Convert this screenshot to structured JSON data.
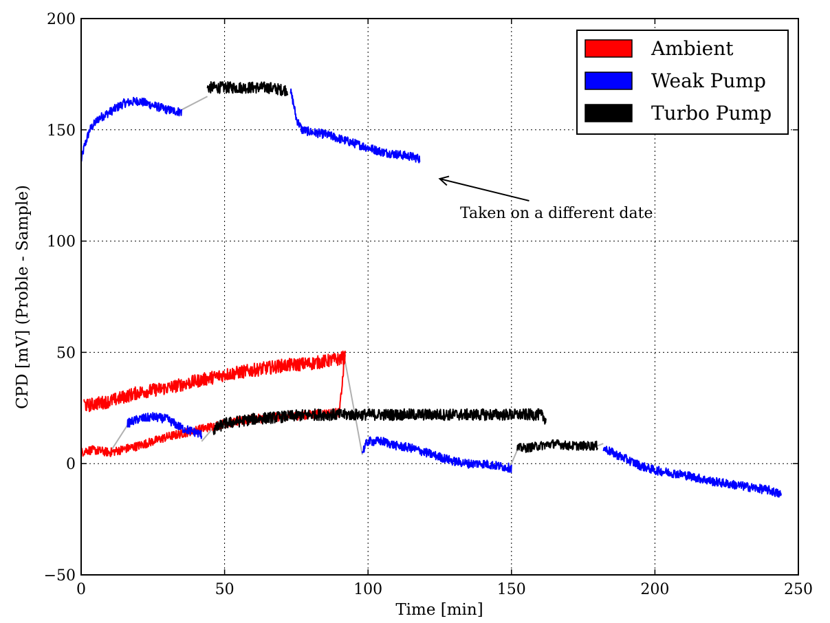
{
  "chart_data": {
    "type": "line",
    "title": "",
    "xlabel": "Time [min]",
    "ylabel": "CPD [mV] (Proble - Sample)",
    "xlim": [
      0,
      250
    ],
    "ylim": [
      -50,
      200
    ],
    "xticks": [
      0,
      50,
      100,
      150,
      200,
      250
    ],
    "xtick_labels": [
      "0",
      "50",
      "100",
      "150",
      "200",
      "250"
    ],
    "yticks": [
      -50,
      0,
      50,
      100,
      150,
      200
    ],
    "ytick_labels": [
      "−50",
      "0",
      "50",
      "100",
      "150",
      "200"
    ],
    "grid": true,
    "legend_position": "top-right",
    "legend": [
      {
        "label": "Ambient",
        "color": "#ff0000"
      },
      {
        "label": "Weak Pump",
        "color": "#0000ff"
      },
      {
        "label": "Turbo Pump",
        "color": "#000000"
      }
    ],
    "connector_color": "#b0b0b0",
    "annotation": {
      "text": "Taken on a different date",
      "arrow_target": [
        125,
        128
      ]
    },
    "series": [
      {
        "legend": "Weak Pump",
        "color": "#0000ff",
        "noise": 2.0,
        "x": [
          0,
          1,
          3,
          6,
          10,
          15,
          20,
          25,
          30,
          35
        ],
        "y": [
          136,
          142,
          150,
          155,
          158,
          162,
          163,
          161,
          159,
          158
        ]
      },
      {
        "legend": "Turbo Pump",
        "color": "#000000",
        "noise": 2.6,
        "x": [
          44,
          50,
          55,
          60,
          65,
          70,
          72
        ],
        "y": [
          169,
          169,
          169,
          169,
          169,
          168,
          168
        ]
      },
      {
        "legend": "Weak Pump",
        "color": "#0000ff",
        "noise": 2.0,
        "x": [
          73,
          74,
          75,
          77,
          80,
          85,
          90,
          95,
          100,
          105,
          110,
          115,
          118
        ],
        "y": [
          167,
          162,
          155,
          150,
          149,
          148,
          146,
          144,
          142,
          140,
          139,
          138,
          137
        ]
      },
      {
        "legend": "Ambient",
        "color": "#ff0000",
        "noise": 2.0,
        "x": [
          0,
          2,
          5,
          10,
          20,
          30,
          40,
          50,
          60,
          70,
          80,
          90,
          92
        ],
        "y": [
          5,
          6,
          6,
          5,
          8,
          12,
          15,
          18,
          20,
          21,
          22,
          23,
          49
        ]
      },
      {
        "legend": "Ambient",
        "color": "#ff0000",
        "noise": 3.0,
        "x": [
          1,
          2,
          5,
          10,
          20,
          30,
          40,
          50,
          60,
          70,
          80,
          90,
          92
        ],
        "y": [
          27,
          26,
          27,
          28,
          32,
          34,
          37,
          40,
          42,
          44,
          45,
          47,
          48
        ]
      },
      {
        "legend": "Weak Pump",
        "color": "#0000ff",
        "noise": 2.0,
        "x": [
          16,
          18,
          20,
          25,
          30,
          35,
          40,
          42
        ],
        "y": [
          18,
          19,
          20,
          21,
          20,
          16,
          14,
          13
        ]
      },
      {
        "legend": "Turbo Pump",
        "color": "#000000",
        "noise": 2.6,
        "x": [
          46,
          50,
          60,
          70,
          80,
          90,
          100,
          110,
          120,
          130,
          140,
          150,
          155,
          160,
          162
        ],
        "y": [
          15,
          18,
          20,
          21,
          22,
          22,
          22,
          22,
          22,
          22,
          22,
          22,
          22,
          22,
          20
        ]
      },
      {
        "legend": "Weak Pump",
        "color": "#0000ff",
        "noise": 2.0,
        "x": [
          98,
          99,
          100,
          105,
          110,
          115,
          120,
          125,
          130,
          135,
          140,
          145,
          150
        ],
        "y": [
          5,
          8,
          10,
          10,
          8,
          7,
          5,
          3,
          1,
          0,
          0,
          -1,
          -2
        ]
      },
      {
        "legend": "Turbo Pump",
        "color": "#000000",
        "noise": 2.0,
        "x": [
          152,
          155,
          160,
          165,
          170,
          175,
          180
        ],
        "y": [
          7,
          7,
          8,
          9,
          8,
          8,
          8
        ]
      },
      {
        "legend": "Weak Pump",
        "color": "#0000ff",
        "noise": 2.0,
        "x": [
          182,
          185,
          190,
          195,
          200,
          210,
          220,
          230,
          240,
          244
        ],
        "y": [
          7,
          5,
          2,
          -1,
          -3,
          -5,
          -8,
          -10,
          -12,
          -14
        ]
      }
    ],
    "connectors": [
      {
        "x": [
          35,
          44
        ],
        "y": [
          159,
          165
        ]
      },
      {
        "x": [
          10,
          16
        ],
        "y": [
          5,
          17
        ]
      },
      {
        "x": [
          42,
          46
        ],
        "y": [
          10,
          16
        ]
      },
      {
        "x": [
          92,
          98
        ],
        "y": [
          46,
          4
        ]
      },
      {
        "x": [
          149,
          152
        ],
        "y": [
          -3,
          6
        ]
      },
      {
        "x": [
          180,
          182
        ],
        "y": [
          8,
          9
        ]
      }
    ]
  }
}
